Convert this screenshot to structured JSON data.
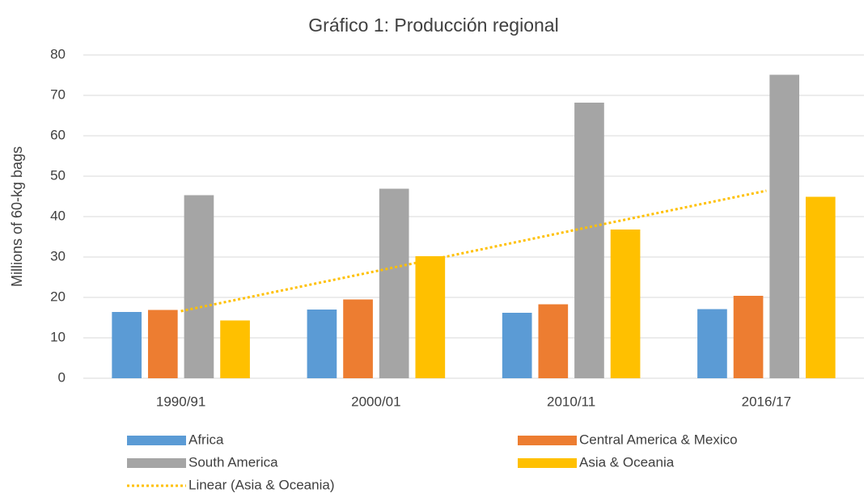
{
  "chart_data": {
    "type": "bar",
    "title": "Gráfico 1: Producción regional",
    "y_label": "Millions of 60-kg bags",
    "categories": [
      "1990/91",
      "2000/01",
      "2010/11",
      "2016/17"
    ],
    "series": [
      {
        "name": "Africa",
        "color": "#5b9bd5",
        "values": [
          16.4,
          17.0,
          16.2,
          17.1
        ]
      },
      {
        "name": "Central America & Mexico",
        "color": "#ed7d31",
        "values": [
          16.9,
          19.5,
          18.3,
          20.4
        ]
      },
      {
        "name": "South America",
        "color": "#a5a5a5",
        "values": [
          45.3,
          46.9,
          68.2,
          75.1
        ]
      },
      {
        "name": "Asia & Oceania",
        "color": "#ffc000",
        "values": [
          14.3,
          30.2,
          36.8,
          44.9
        ]
      }
    ],
    "trendline": {
      "name": "Linear (Asia & Oceania)",
      "color": "#ffc000",
      "values": [
        16.6,
        26.5,
        36.5,
        46.4
      ]
    },
    "ylim": [
      0,
      80
    ],
    "yticks": [
      0,
      10,
      20,
      30,
      40,
      50,
      60,
      70,
      80
    ],
    "grid": true
  }
}
